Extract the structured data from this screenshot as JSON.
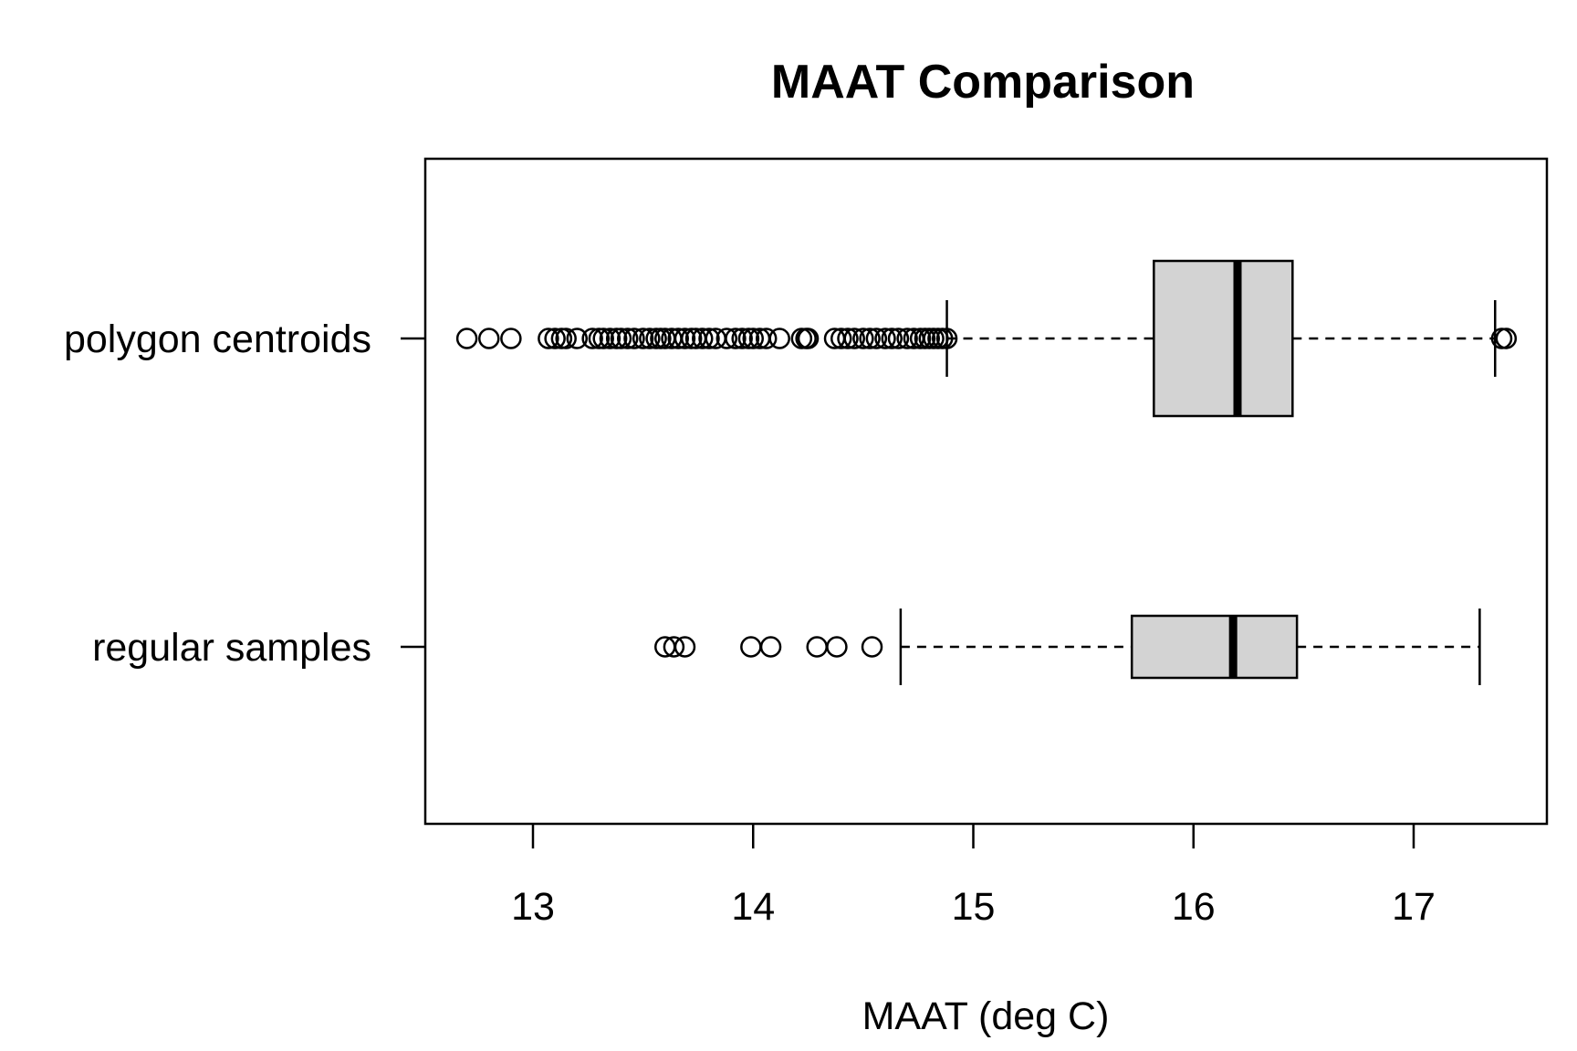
{
  "chart_data": {
    "type": "boxplot",
    "orientation": "horizontal",
    "title": "MAAT Comparison",
    "xlabel": "MAAT (deg C)",
    "ylabel": "",
    "xlim": [
      12.5,
      17.6
    ],
    "xticks": [
      13,
      14,
      15,
      16,
      17
    ],
    "tick_labels": [
      "13",
      "14",
      "15",
      "16",
      "17"
    ],
    "box_fill": "#d3d3d3",
    "series": [
      {
        "name": "polygon centroids",
        "whisker_low": 14.88,
        "q1": 15.82,
        "median": 16.2,
        "q3": 16.45,
        "whisker_high": 17.37,
        "outliers": [
          12.7,
          12.8,
          12.9,
          13.07,
          13.1,
          13.13,
          13.15,
          13.2,
          13.27,
          13.3,
          13.32,
          13.35,
          13.38,
          13.4,
          13.43,
          13.46,
          13.5,
          13.53,
          13.56,
          13.58,
          13.6,
          13.63,
          13.66,
          13.69,
          13.72,
          13.74,
          13.77,
          13.8,
          13.83,
          13.88,
          13.92,
          13.95,
          13.98,
          14.0,
          14.03,
          14.06,
          14.12,
          14.22,
          14.24,
          14.25,
          14.37,
          14.4,
          14.43,
          14.46,
          14.5,
          14.53,
          14.56,
          14.6,
          14.63,
          14.66,
          14.7,
          14.73,
          14.76,
          14.78,
          14.8,
          14.82,
          14.84,
          14.86,
          14.88,
          17.4,
          17.42
        ]
      },
      {
        "name": "regular samples",
        "whisker_low": 14.67,
        "q1": 15.72,
        "median": 16.18,
        "q3": 16.47,
        "whisker_high": 17.3,
        "outliers": [
          13.6,
          13.64,
          13.69,
          13.99,
          14.08,
          14.29,
          14.38,
          14.54
        ]
      }
    ]
  }
}
